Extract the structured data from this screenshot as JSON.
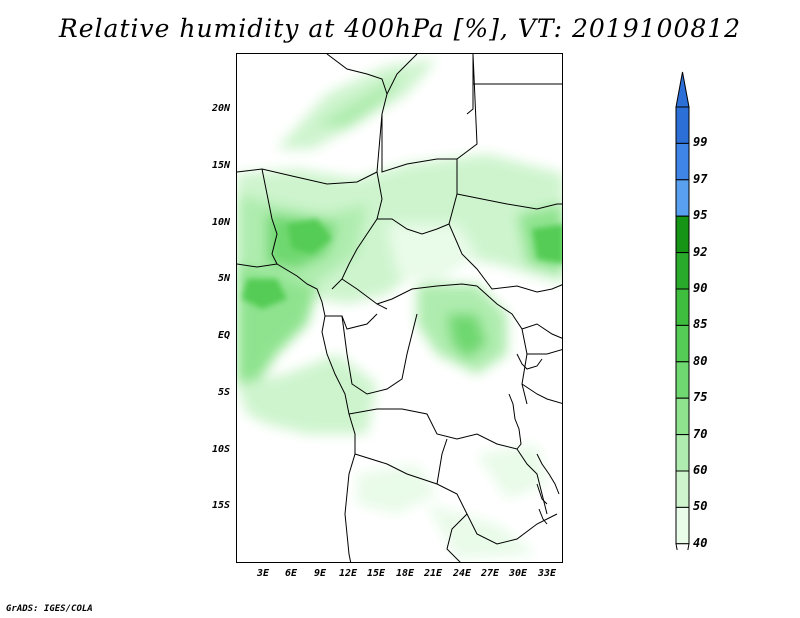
{
  "title": "Relative humidity at 400hPa [%], VT: 2019100812",
  "credit": "GrADS: IGES/COLA",
  "map": {
    "lat_labels": [
      "20N",
      "15N",
      "10N",
      "5N",
      "EQ",
      "5S",
      "10S",
      "15S"
    ],
    "lon_labels": [
      "3E",
      "6E",
      "9E",
      "12E",
      "15E",
      "18E",
      "21E",
      "24E",
      "27E",
      "30E",
      "33E"
    ]
  },
  "colorbar": {
    "labels": [
      "99",
      "97",
      "95",
      "92",
      "90",
      "85",
      "80",
      "75",
      "70",
      "60",
      "50",
      "40"
    ],
    "colors": [
      "#2c6fd6",
      "#3f85e8",
      "#5aa0f0",
      "#169416",
      "#2aaa2a",
      "#3fbd3f",
      "#55cc55",
      "#70d870",
      "#8fe38f",
      "#afecaf",
      "#cef4ce",
      "#e9fbe9"
    ]
  }
}
